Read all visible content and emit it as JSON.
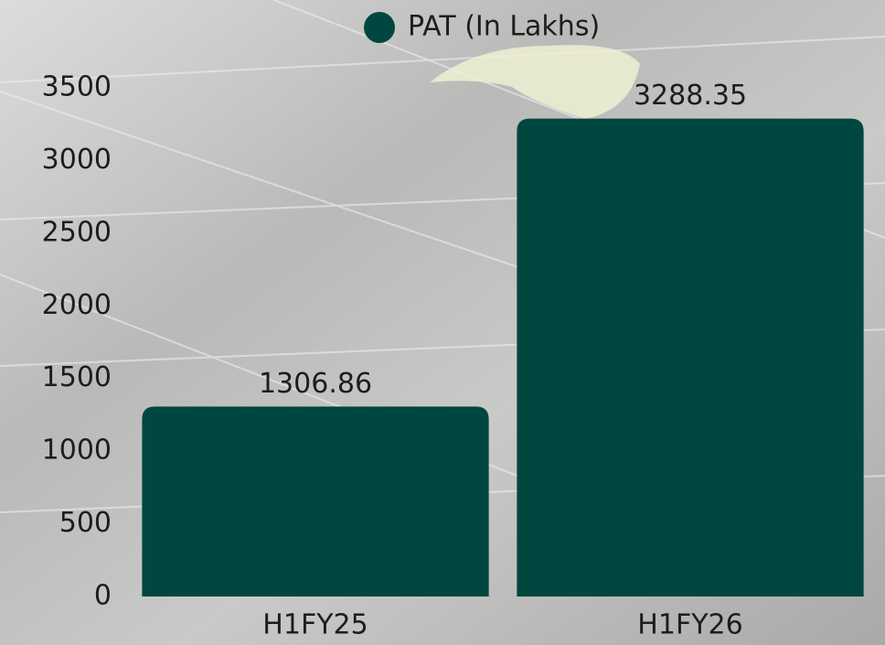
{
  "chart_data": {
    "type": "bar",
    "categories": [
      "H1FY25",
      "H1FY26"
    ],
    "series": [
      {
        "name": "PAT (In Lakhs)",
        "color": "#00473f",
        "values": [
          1306.86,
          3288.35
        ]
      }
    ],
    "ylim": [
      0,
      3500
    ],
    "yticks": [
      0,
      500,
      1000,
      1500,
      2000,
      2500,
      3000,
      3500
    ],
    "grid": false,
    "legend": "top"
  }
}
